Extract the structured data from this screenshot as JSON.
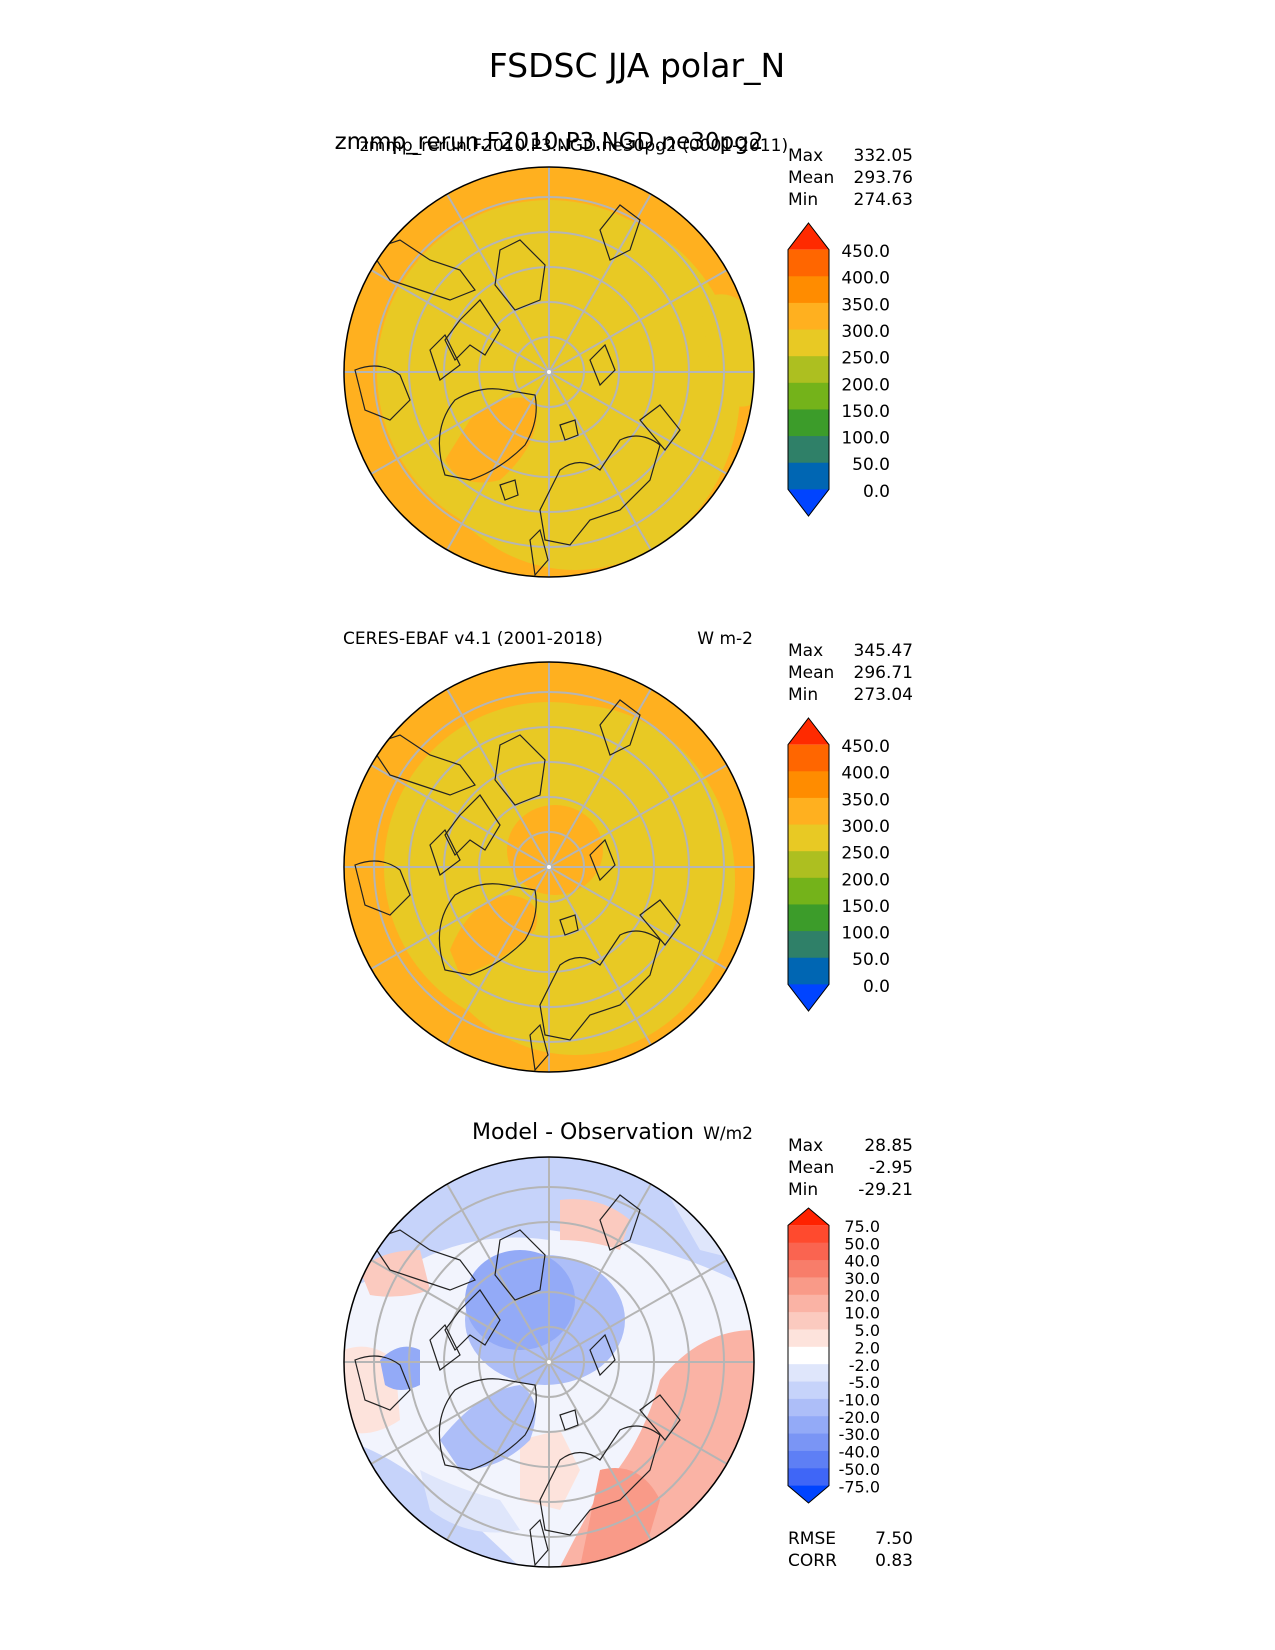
{
  "figure": {
    "title": "FSDSC JJA polar_N"
  },
  "panels": [
    {
      "id": "model",
      "title_main": "zmmp_rerun.F2010.P3.NGD.ne30pg2",
      "title_overlap": "zmmp_rerun.F2010.P3.NGD.ne30pg2 (0001-2011)",
      "units": "",
      "stats": [
        {
          "label": "Max",
          "value": "332.05"
        },
        {
          "label": "Mean",
          "value": "293.76"
        },
        {
          "label": "Min",
          "value": "274.63"
        }
      ]
    },
    {
      "id": "obs",
      "title_main": "CERES-EBAF v4.1 (2001-2018)",
      "units": "W m-2",
      "stats": [
        {
          "label": "Max",
          "value": "345.47"
        },
        {
          "label": "Mean",
          "value": "296.71"
        },
        {
          "label": "Min",
          "value": "273.04"
        }
      ]
    },
    {
      "id": "diff",
      "title_main": "Model - Observation",
      "units": "W/m2",
      "stats": [
        {
          "label": "Max",
          "value": "28.85"
        },
        {
          "label": "Mean",
          "value": "-2.95"
        },
        {
          "label": "Min",
          "value": "-29.21"
        }
      ],
      "extra_stats": [
        {
          "label": "RMSE",
          "value": "7.50"
        },
        {
          "label": "CORR",
          "value": "0.83"
        }
      ]
    }
  ],
  "chart_data": [
    {
      "type": "heatmap",
      "title": "zmmp_rerun.F2010.P3.NGD.ne30pg2",
      "projection": "north polar stereographic",
      "colorbar": {
        "ticks": [
          "450.0",
          "400.0",
          "350.0",
          "300.0",
          "250.0",
          "200.0",
          "150.0",
          "100.0",
          "50.0",
          "0.0"
        ],
        "colors": [
          "#ff2a00",
          "#ff6600",
          "#ff8c00",
          "#ffb01f",
          "#e8c924",
          "#adbf20",
          "#74b31a",
          "#3c9c2a",
          "#2f8068",
          "#0066b3",
          "#0044ff"
        ],
        "extend": "both"
      },
      "stats": {
        "max": 332.05,
        "mean": 293.76,
        "min": 274.63
      }
    },
    {
      "type": "heatmap",
      "title": "CERES-EBAF v4.1 (2001-2018)",
      "units": "W m-2",
      "projection": "north polar stereographic",
      "colorbar": {
        "ticks": [
          "450.0",
          "400.0",
          "350.0",
          "300.0",
          "250.0",
          "200.0",
          "150.0",
          "100.0",
          "50.0",
          "0.0"
        ],
        "colors": [
          "#ff2a00",
          "#ff6600",
          "#ff8c00",
          "#ffb01f",
          "#e8c924",
          "#adbf20",
          "#74b31a",
          "#3c9c2a",
          "#2f8068",
          "#0066b3",
          "#0044ff"
        ],
        "extend": "both"
      },
      "stats": {
        "max": 345.47,
        "mean": 296.71,
        "min": 273.04
      }
    },
    {
      "type": "heatmap",
      "title": "Model - Observation",
      "units": "W/m2",
      "projection": "north polar stereographic",
      "colorbar": {
        "ticks": [
          "75.0",
          "50.0",
          "40.0",
          "30.0",
          "20.0",
          "10.0",
          "5.0",
          "2.0",
          "-2.0",
          "-5.0",
          "-10.0",
          "-20.0",
          "-30.0",
          "-40.0",
          "-50.0",
          "-75.0"
        ],
        "colors": [
          "#ff2200",
          "#ff4a2e",
          "#fa6450",
          "#f87d6a",
          "#f99a88",
          "#fab3a5",
          "#fbcabf",
          "#fde3dc",
          "#ffffff",
          "#dfe6fb",
          "#c6d3fa",
          "#adbef8",
          "#93aaf7",
          "#7a95f5",
          "#5e7ff5",
          "#3f66f7",
          "#0044ff"
        ],
        "extend": "both"
      },
      "stats": {
        "max": 28.85,
        "mean": -2.95,
        "min": -29.21,
        "rmse": 7.5,
        "corr": 0.83
      }
    }
  ]
}
